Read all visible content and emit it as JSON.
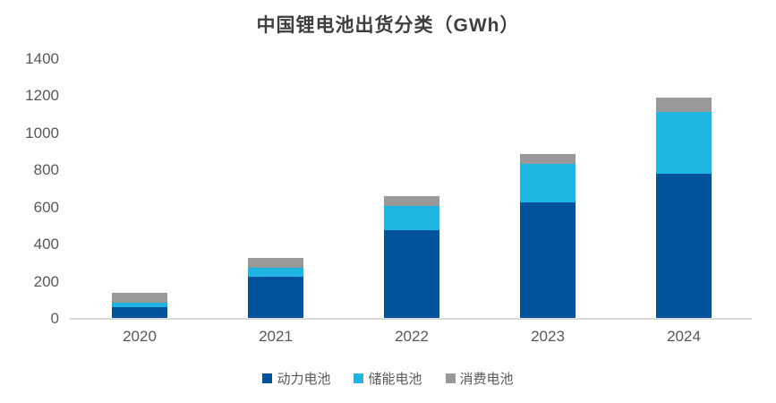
{
  "page": {
    "title": "中国锂电池出货分类（GWh）"
  },
  "chart_data": {
    "type": "bar",
    "stacked": true,
    "title": "中国锂电池出货分类（GWh）",
    "unit": "GWh",
    "categories": [
      "2020",
      "2021",
      "2022",
      "2023",
      "2024"
    ],
    "series": [
      {
        "key": "power",
        "name": "动力电池",
        "color": "#00529B",
        "values": [
          65,
          226,
          480,
          630,
          780
        ]
      },
      {
        "key": "storage",
        "name": "储能电池",
        "color": "#1FB5E3",
        "values": [
          22,
          48,
          130,
          205,
          335
        ]
      },
      {
        "key": "consumer",
        "name": "消费电池",
        "color": "#999999",
        "values": [
          53,
          53,
          52,
          55,
          78
        ]
      }
    ],
    "totals": [
      140,
      327,
      662,
      890,
      1193
    ],
    "xlabel": "",
    "ylabel": "",
    "ylim": [
      0,
      1400
    ],
    "yticks": [
      0,
      200,
      400,
      600,
      800,
      1000,
      1200,
      1400
    ],
    "grid": false,
    "legend_position": "bottom",
    "style": {
      "axis_line_color": "#D9D9D9",
      "tick_label_color": "#595959",
      "title_color": "#3F3F3F",
      "background": "#FFFFFF"
    }
  }
}
